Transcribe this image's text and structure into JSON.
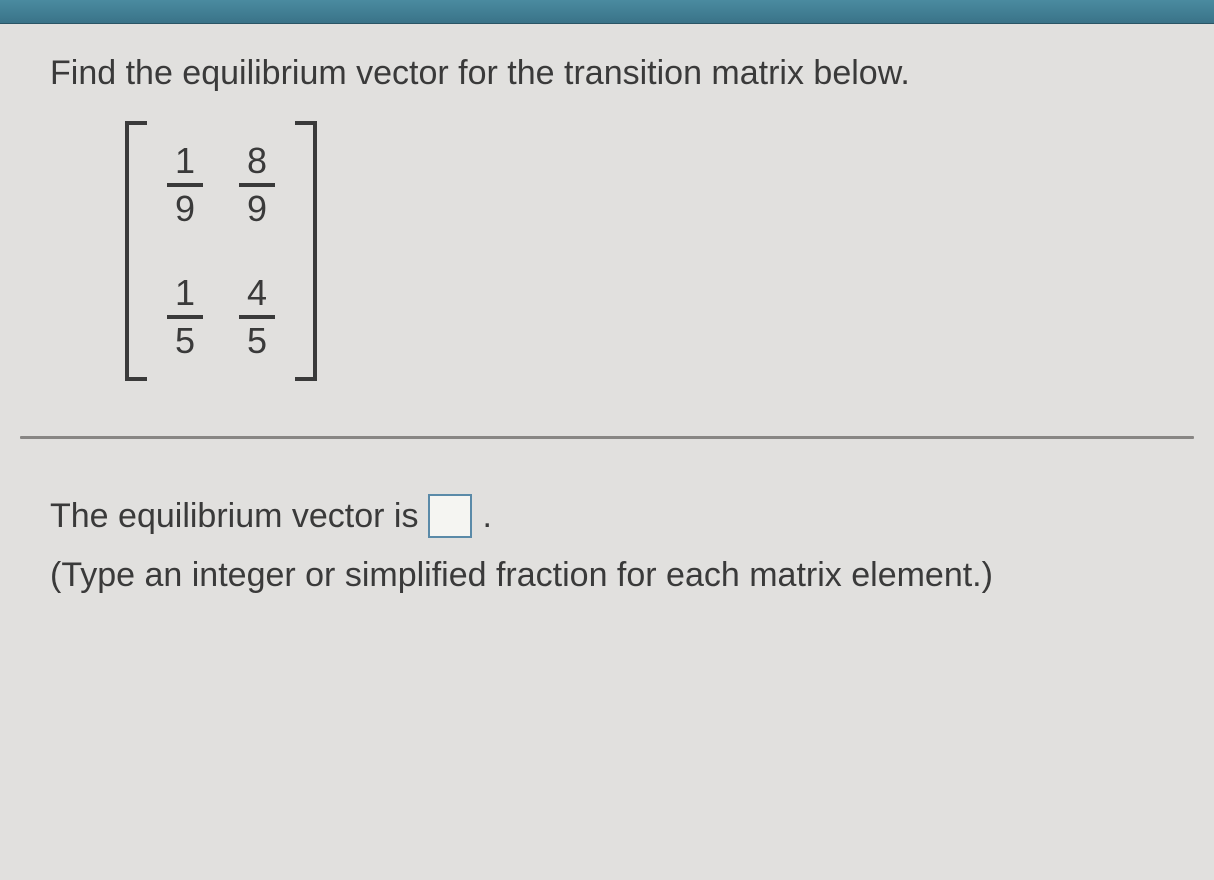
{
  "question": {
    "prompt": "Find the equilibrium vector for the transition matrix below.",
    "matrix": {
      "rows": [
        [
          {
            "num": "1",
            "den": "9"
          },
          {
            "num": "8",
            "den": "9"
          }
        ],
        [
          {
            "num": "1",
            "den": "5"
          },
          {
            "num": "4",
            "den": "5"
          }
        ]
      ],
      "bracket_color": "#3a3a3a"
    }
  },
  "answer": {
    "label_prefix": "The equilibrium vector is",
    "label_suffix": ".",
    "hint": "(Type an integer or simplified fraction for each matrix element.)",
    "input_border_color": "#5a8aa8"
  },
  "styling": {
    "header_bg": "#4a8ba0",
    "page_bg": "#e1e0de",
    "text_color": "#3a3a3a",
    "divider_color": "#888684",
    "font_size_pt": 26
  }
}
